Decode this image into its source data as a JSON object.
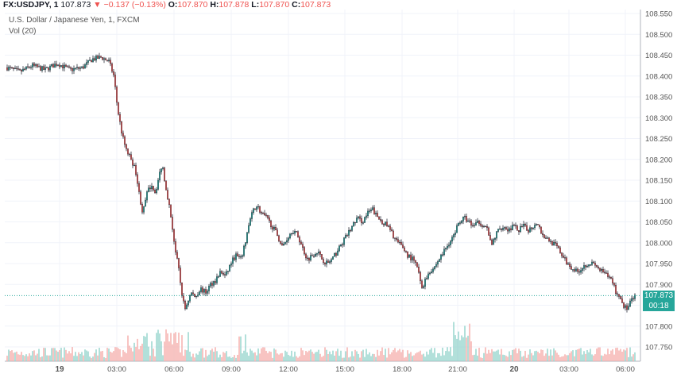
{
  "header": {
    "symbol": "FX:USDJPY, 1",
    "last": "107.873",
    "arrow": "▼",
    "change": "−0.137 (−0.13%)",
    "o_label": "O:",
    "o_val": "107.870",
    "h_label": "H:",
    "h_val": "107.878",
    "l_label": "L:",
    "l_val": "107.870",
    "c_label": "C:",
    "c_val": "107.873",
    "subtitle": "U.S. Dollar / Japanese Yen, 1, FXCM",
    "volume_label": "Vol (20)"
  },
  "price_tag": {
    "value": "107.873",
    "countdown": "00:18"
  },
  "colors": {
    "up": "#26a69a",
    "down": "#ef5350",
    "vol_up": "#8fd1c9",
    "vol_down": "#f5a9a7",
    "tag": "#26a69a",
    "grid": "#f0f3fa",
    "axis_text": "#555555"
  },
  "chart_data": {
    "type": "candlestick",
    "title": "U.S. Dollar / Japanese Yen, 1, FXCM",
    "x_ticks": [
      "19",
      "03:00",
      "06:00",
      "09:00",
      "12:00",
      "15:00",
      "18:00",
      "21:00",
      "20",
      "03:00",
      "06:00"
    ],
    "y_ticks": [
      "108.550",
      "108.500",
      "108.450",
      "108.400",
      "108.350",
      "108.300",
      "108.250",
      "108.200",
      "108.150",
      "108.100",
      "108.050",
      "108.000",
      "107.950",
      "107.900",
      "107.850",
      "107.800",
      "107.750"
    ],
    "ylim": [
      107.72,
      108.56
    ],
    "last_price": 107.873,
    "price_path": [
      [
        0,
        108.42
      ],
      [
        2,
        108.41
      ],
      [
        4,
        108.425
      ],
      [
        6,
        108.415
      ],
      [
        8,
        108.43
      ],
      [
        10,
        108.415
      ],
      [
        12,
        108.42
      ],
      [
        13.5,
        108.44
      ],
      [
        15,
        108.445
      ],
      [
        16.2,
        108.435
      ],
      [
        17,
        108.4
      ],
      [
        17.6,
        108.32
      ],
      [
        18.3,
        108.26
      ],
      [
        19,
        108.22
      ],
      [
        19.8,
        108.2
      ],
      [
        20.5,
        108.17
      ],
      [
        21,
        108.12
      ],
      [
        21.6,
        108.07
      ],
      [
        22.3,
        108.12
      ],
      [
        23,
        108.14
      ],
      [
        23.6,
        108.12
      ],
      [
        24.2,
        108.16
      ],
      [
        24.7,
        108.19
      ],
      [
        25.2,
        108.14
      ],
      [
        25.7,
        108.1
      ],
      [
        26.2,
        108.05
      ],
      [
        26.8,
        107.98
      ],
      [
        27.3,
        107.94
      ],
      [
        27.8,
        107.88
      ],
      [
        28.3,
        107.84
      ],
      [
        28.8,
        107.86
      ],
      [
        29.3,
        107.88
      ],
      [
        30,
        107.87
      ],
      [
        30.8,
        107.89
      ],
      [
        31.6,
        107.88
      ],
      [
        32.4,
        107.9
      ],
      [
        33.2,
        107.91
      ],
      [
        34,
        107.93
      ],
      [
        34.8,
        107.92
      ],
      [
        35.6,
        107.95
      ],
      [
        36.4,
        107.97
      ],
      [
        37.2,
        107.96
      ],
      [
        37.8,
        107.99
      ],
      [
        38.3,
        108.03
      ],
      [
        38.8,
        108.06
      ],
      [
        39.3,
        108.08
      ],
      [
        39.8,
        108.09
      ],
      [
        40.5,
        108.07
      ],
      [
        41.3,
        108.06
      ],
      [
        42.2,
        108.04
      ],
      [
        43,
        108.02
      ],
      [
        43.8,
        107.99
      ],
      [
        44.6,
        108.01
      ],
      [
        45.4,
        108.03
      ],
      [
        46.2,
        108.02
      ],
      [
        47,
        107.99
      ],
      [
        47.8,
        107.96
      ],
      [
        48.6,
        107.97
      ],
      [
        49.4,
        107.98
      ],
      [
        50.2,
        107.96
      ],
      [
        51,
        107.95
      ],
      [
        51.8,
        107.96
      ],
      [
        52.6,
        107.98
      ],
      [
        53.4,
        108.0
      ],
      [
        54.2,
        108.02
      ],
      [
        55,
        108.04
      ],
      [
        55.8,
        108.06
      ],
      [
        56.6,
        108.05
      ],
      [
        57.4,
        108.07
      ],
      [
        58.2,
        108.08
      ],
      [
        59,
        108.06
      ],
      [
        59.8,
        108.05
      ],
      [
        60.6,
        108.04
      ],
      [
        61.4,
        108.02
      ],
      [
        62.2,
        108.0
      ],
      [
        63,
        107.99
      ],
      [
        63.8,
        107.97
      ],
      [
        64.6,
        107.96
      ],
      [
        65.4,
        107.94
      ],
      [
        66,
        107.89
      ],
      [
        66.6,
        107.91
      ],
      [
        67.2,
        107.93
      ],
      [
        68,
        107.94
      ],
      [
        68.8,
        107.96
      ],
      [
        69.6,
        107.98
      ],
      [
        70.4,
        108.0
      ],
      [
        71.2,
        108.02
      ],
      [
        72,
        108.05
      ],
      [
        72.8,
        108.06
      ],
      [
        73.6,
        108.05
      ],
      [
        74.4,
        108.04
      ],
      [
        75.2,
        108.05
      ],
      [
        76,
        108.04
      ],
      [
        76.6,
        108.03
      ],
      [
        77.1,
        107.99
      ],
      [
        77.6,
        108.01
      ],
      [
        78.2,
        108.03
      ],
      [
        79,
        108.04
      ],
      [
        79.8,
        108.03
      ],
      [
        80.6,
        108.04
      ],
      [
        81.4,
        108.03
      ],
      [
        82.2,
        108.04
      ],
      [
        83,
        108.03
      ],
      [
        83.8,
        108.04
      ],
      [
        84.5,
        108.05
      ],
      [
        85.2,
        108.02
      ],
      [
        86,
        108.01
      ],
      [
        86.8,
        108.0
      ],
      [
        87.6,
        107.99
      ],
      [
        88.4,
        107.97
      ],
      [
        89.2,
        107.95
      ],
      [
        90,
        107.94
      ],
      [
        90.8,
        107.93
      ],
      [
        91.6,
        107.94
      ],
      [
        92.4,
        107.95
      ],
      [
        93.2,
        107.95
      ],
      [
        94,
        107.94
      ],
      [
        94.8,
        107.93
      ],
      [
        95.6,
        107.92
      ],
      [
        96.4,
        107.91
      ],
      [
        97,
        107.88
      ],
      [
        97.6,
        107.87
      ],
      [
        98.2,
        107.85
      ],
      [
        98.8,
        107.84
      ],
      [
        99.4,
        107.86
      ],
      [
        100,
        107.87
      ]
    ],
    "volume": {
      "label": "Vol (20)"
    }
  }
}
